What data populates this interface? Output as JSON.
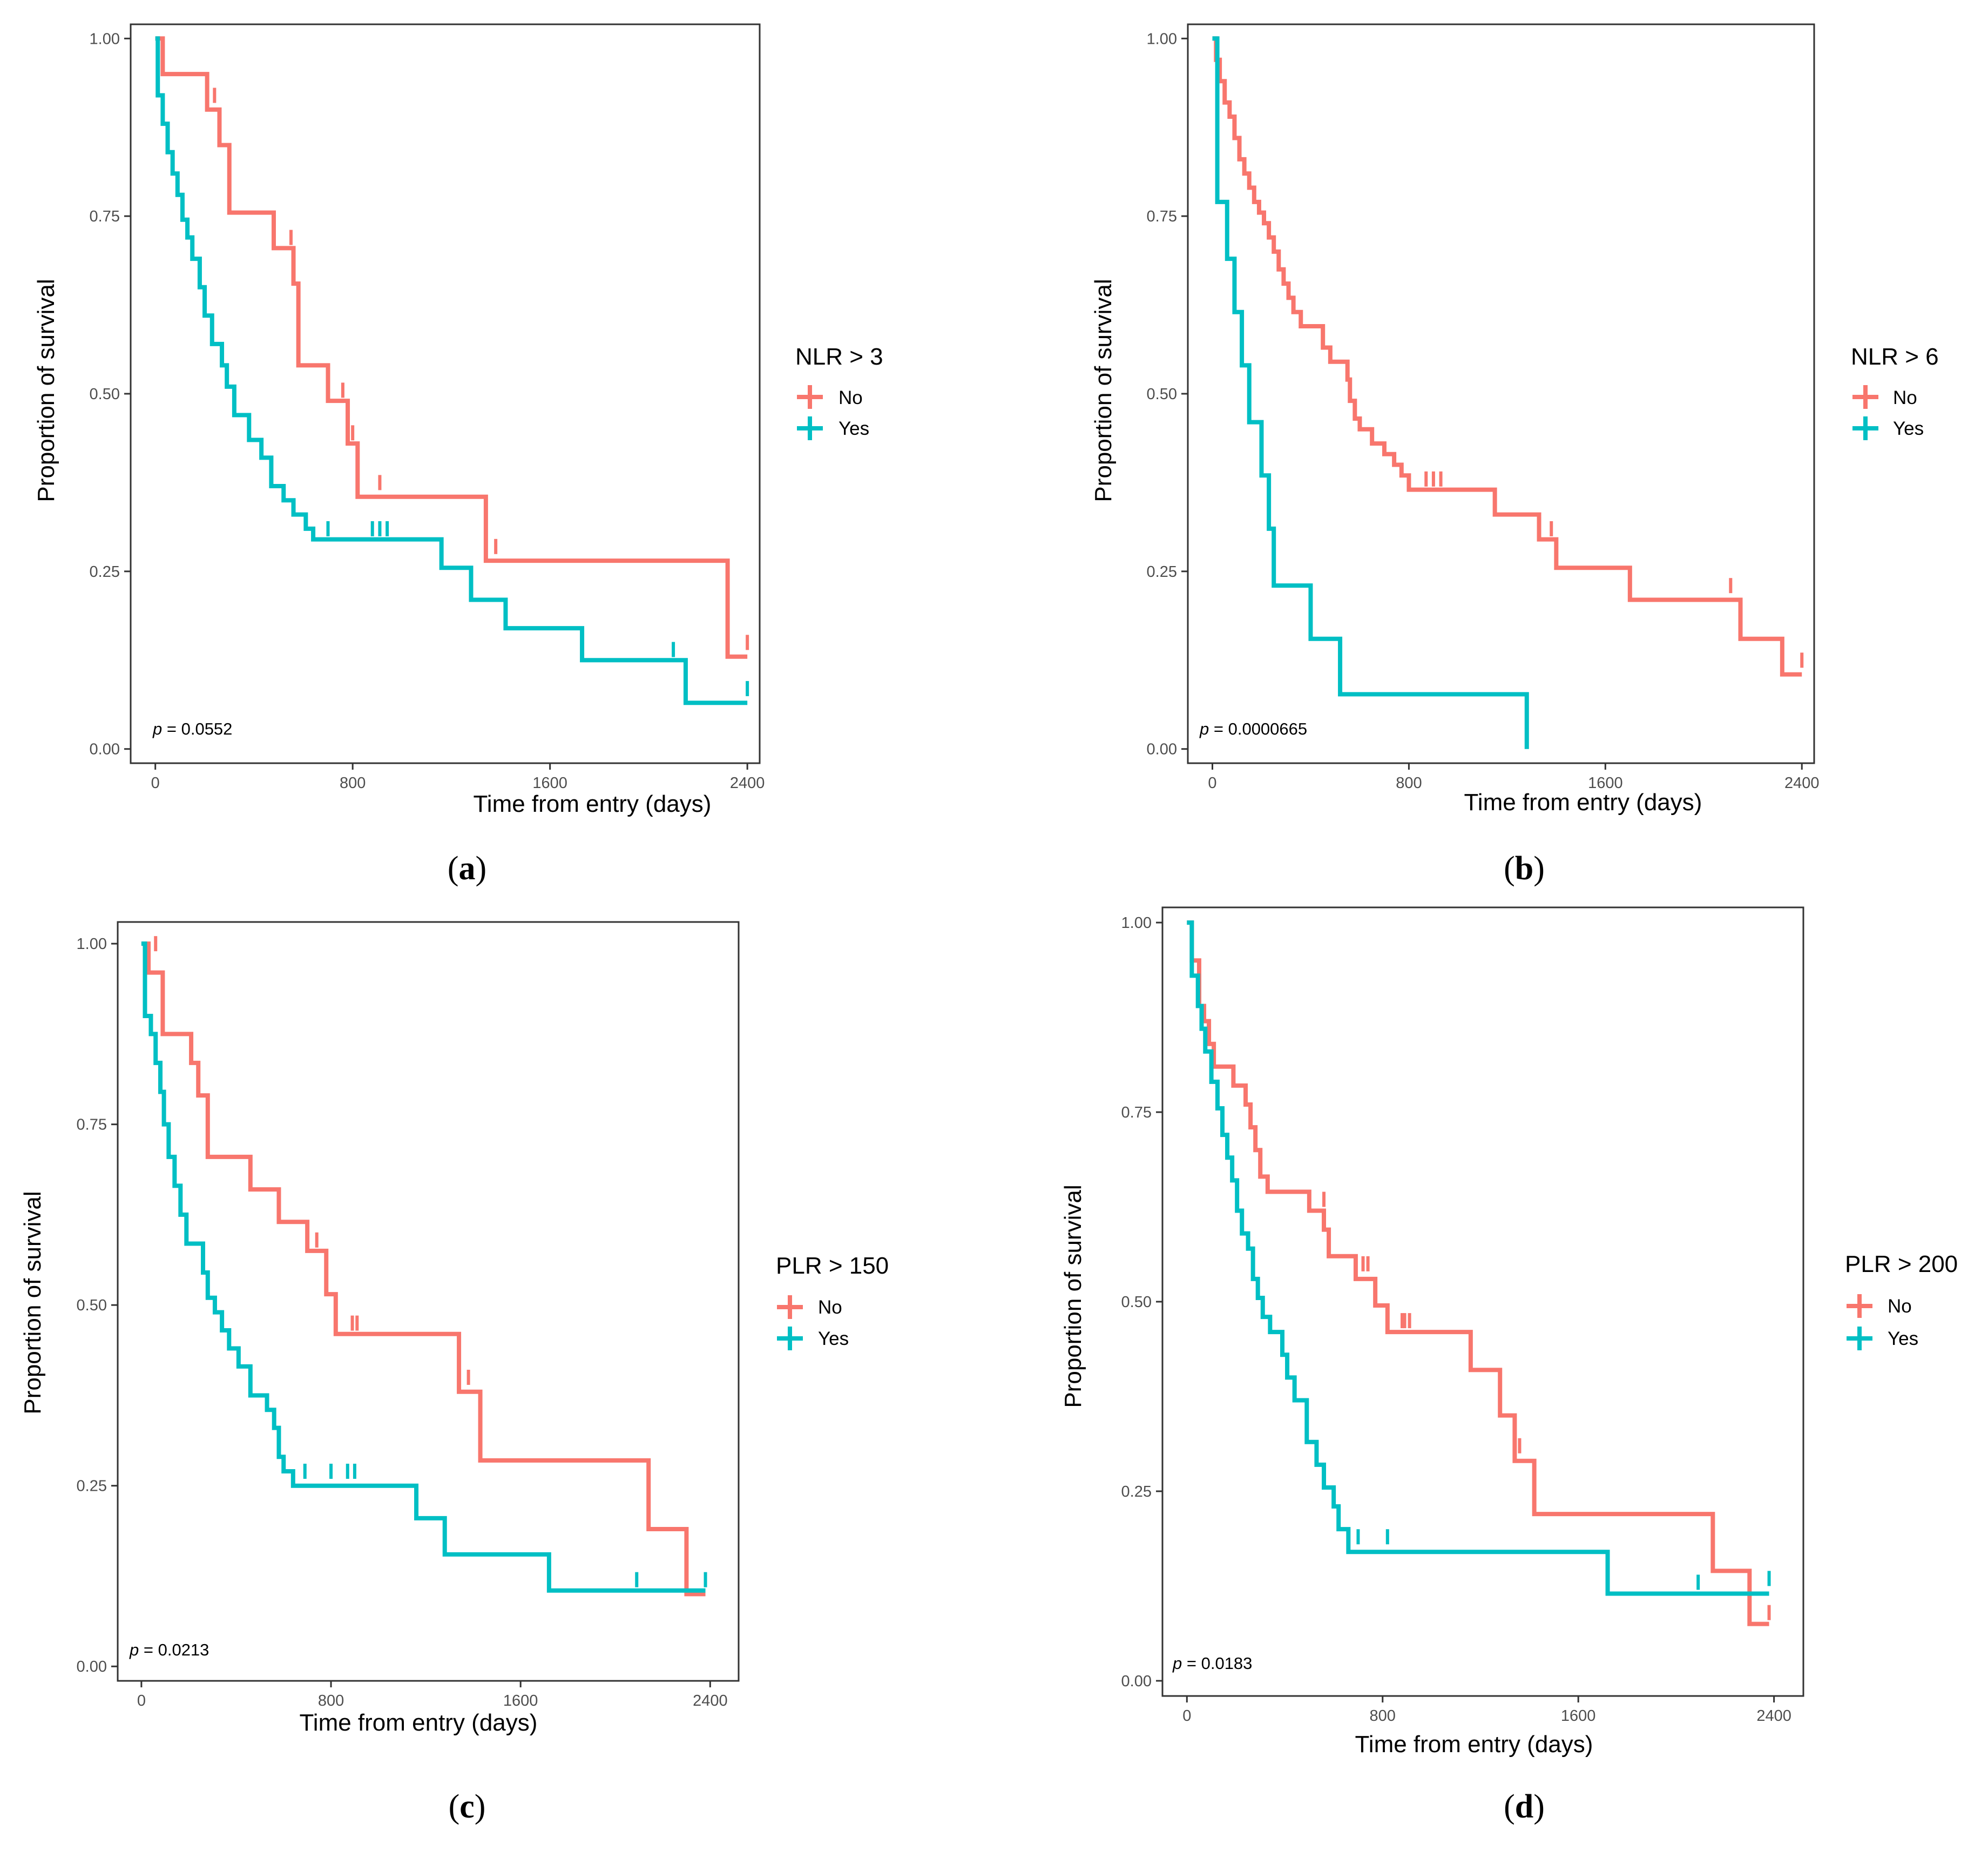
{
  "colors": {
    "no": "#F8766D",
    "yes": "#00BFC4",
    "axis": "#333333",
    "tick_text": "#4d4d4d"
  },
  "common": {
    "xlabel": "Time from entry (days)",
    "ylabel": "Proportion of survival",
    "x_ticks": [
      0,
      800,
      1600,
      2400
    ],
    "y_ticks": [
      0.0,
      0.25,
      0.5,
      0.75,
      1.0
    ],
    "y_tick_labels": [
      "0.00",
      "0.25",
      "0.50",
      "0.75",
      "1.00"
    ]
  },
  "chart_data": [
    {
      "id": "a",
      "panel_label": "a",
      "type": "line",
      "subtype": "kaplan-meier",
      "title": "",
      "xlabel": "Time from entry (days)",
      "ylabel": "Proportion of survival",
      "xlim": [
        -100,
        2450
      ],
      "ylim": [
        -0.02,
        1.02
      ],
      "legend": {
        "title": "NLR > 3",
        "entries": [
          "No",
          "Yes"
        ]
      },
      "p_value": "0.0552",
      "series": [
        {
          "name": "No",
          "steps": [
            [
              0,
              1.0
            ],
            [
              30,
              0.95
            ],
            [
              210,
              0.9
            ],
            [
              260,
              0.85
            ],
            [
              300,
              0.755
            ],
            [
              480,
              0.705
            ],
            [
              560,
              0.655
            ],
            [
              580,
              0.54
            ],
            [
              700,
              0.49
            ],
            [
              780,
              0.43
            ],
            [
              820,
              0.355
            ],
            [
              1340,
              0.265
            ],
            [
              2320,
              0.13
            ],
            [
              2400,
              0.13
            ]
          ],
          "censor": [
            [
              240,
              0.92
            ],
            [
              550,
              0.72
            ],
            [
              760,
              0.505
            ],
            [
              800,
              0.445
            ],
            [
              910,
              0.375
            ],
            [
              1380,
              0.285
            ],
            [
              2400,
              0.15
            ]
          ]
        },
        {
          "name": "Yes",
          "steps": [
            [
              0,
              1.0
            ],
            [
              10,
              0.92
            ],
            [
              30,
              0.88
            ],
            [
              50,
              0.84
            ],
            [
              70,
              0.81
            ],
            [
              90,
              0.78
            ],
            [
              110,
              0.745
            ],
            [
              130,
              0.72
            ],
            [
              150,
              0.69
            ],
            [
              180,
              0.65
            ],
            [
              200,
              0.61
            ],
            [
              230,
              0.57
            ],
            [
              270,
              0.54
            ],
            [
              290,
              0.51
            ],
            [
              320,
              0.47
            ],
            [
              380,
              0.435
            ],
            [
              430,
              0.41
            ],
            [
              470,
              0.37
            ],
            [
              520,
              0.35
            ],
            [
              560,
              0.33
            ],
            [
              610,
              0.31
            ],
            [
              640,
              0.295
            ],
            [
              1160,
              0.255
            ],
            [
              1280,
              0.21
            ],
            [
              1420,
              0.17
            ],
            [
              1730,
              0.125
            ],
            [
              2150,
              0.065
            ],
            [
              2400,
              0.065
            ]
          ],
          "censor": [
            [
              700,
              0.31
            ],
            [
              880,
              0.31
            ],
            [
              910,
              0.31
            ],
            [
              940,
              0.31
            ],
            [
              2100,
              0.14
            ],
            [
              2400,
              0.085
            ]
          ]
        }
      ]
    },
    {
      "id": "b",
      "panel_label": "b",
      "type": "line",
      "subtype": "kaplan-meier",
      "title": "",
      "xlabel": "Time from entry (days)",
      "ylabel": "Proportion of survival",
      "xlim": [
        -100,
        2450
      ],
      "ylim": [
        -0.02,
        1.02
      ],
      "legend": {
        "title": "NLR > 6",
        "entries": [
          "No",
          "Yes"
        ]
      },
      "p_value": "0.0000665",
      "series": [
        {
          "name": "No",
          "steps": [
            [
              0,
              1.0
            ],
            [
              15,
              0.97
            ],
            [
              30,
              0.94
            ],
            [
              50,
              0.91
            ],
            [
              70,
              0.89
            ],
            [
              90,
              0.86
            ],
            [
              110,
              0.83
            ],
            [
              130,
              0.81
            ],
            [
              150,
              0.79
            ],
            [
              170,
              0.77
            ],
            [
              190,
              0.755
            ],
            [
              210,
              0.74
            ],
            [
              230,
              0.72
            ],
            [
              250,
              0.7
            ],
            [
              270,
              0.675
            ],
            [
              290,
              0.655
            ],
            [
              310,
              0.635
            ],
            [
              330,
              0.615
            ],
            [
              360,
              0.595
            ],
            [
              450,
              0.565
            ],
            [
              480,
              0.545
            ],
            [
              550,
              0.52
            ],
            [
              560,
              0.49
            ],
            [
              580,
              0.465
            ],
            [
              600,
              0.45
            ],
            [
              650,
              0.43
            ],
            [
              700,
              0.415
            ],
            [
              740,
              0.4
            ],
            [
              770,
              0.385
            ],
            [
              800,
              0.365
            ],
            [
              1150,
              0.33
            ],
            [
              1330,
              0.295
            ],
            [
              1400,
              0.255
            ],
            [
              1700,
              0.21
            ],
            [
              2150,
              0.155
            ],
            [
              2320,
              0.105
            ],
            [
              2400,
              0.105
            ]
          ],
          "censor": [
            [
              870,
              0.38
            ],
            [
              900,
              0.38
            ],
            [
              930,
              0.38
            ],
            [
              1380,
              0.31
            ],
            [
              2110,
              0.23
            ],
            [
              2400,
              0.125
            ]
          ]
        },
        {
          "name": "Yes",
          "steps": [
            [
              0,
              1.0
            ],
            [
              20,
              0.77
            ],
            [
              60,
              0.69
            ],
            [
              90,
              0.615
            ],
            [
              120,
              0.54
            ],
            [
              150,
              0.46
            ],
            [
              200,
              0.385
            ],
            [
              230,
              0.31
            ],
            [
              250,
              0.23
            ],
            [
              400,
              0.155
            ],
            [
              520,
              0.077
            ],
            [
              1280,
              0.0
            ]
          ],
          "censor": []
        }
      ]
    },
    {
      "id": "c",
      "panel_label": "c",
      "type": "line",
      "subtype": "kaplan-meier",
      "title": "",
      "xlabel": "Time from entry (days)",
      "ylabel": "Proportion of survival",
      "xlim": [
        -100,
        2520
      ],
      "ylim": [
        -0.02,
        1.03
      ],
      "legend": {
        "title": "PLR > 150",
        "entries": [
          "No",
          "Yes"
        ]
      },
      "p_value": "0.0213",
      "series": [
        {
          "name": "No",
          "steps": [
            [
              0,
              1.0
            ],
            [
              30,
              0.96
            ],
            [
              90,
              0.875
            ],
            [
              210,
              0.835
            ],
            [
              240,
              0.79
            ],
            [
              280,
              0.705
            ],
            [
              460,
              0.66
            ],
            [
              580,
              0.615
            ],
            [
              700,
              0.575
            ],
            [
              780,
              0.515
            ],
            [
              820,
              0.46
            ],
            [
              1340,
              0.38
            ],
            [
              1430,
              0.285
            ],
            [
              2140,
              0.19
            ],
            [
              2300,
              0.1
            ],
            [
              2380,
              0.1
            ]
          ],
          "censor": [
            [
              60,
              1.0
            ],
            [
              700,
              0.59
            ],
            [
              740,
              0.59
            ],
            [
              890,
              0.475
            ],
            [
              910,
              0.475
            ],
            [
              1380,
              0.4
            ]
          ]
        },
        {
          "name": "Yes",
          "steps": [
            [
              0,
              1.0
            ],
            [
              15,
              0.9
            ],
            [
              40,
              0.875
            ],
            [
              60,
              0.835
            ],
            [
              80,
              0.795
            ],
            [
              95,
              0.75
            ],
            [
              115,
              0.705
            ],
            [
              140,
              0.665
            ],
            [
              165,
              0.625
            ],
            [
              190,
              0.585
            ],
            [
              260,
              0.545
            ],
            [
              280,
              0.51
            ],
            [
              310,
              0.49
            ],
            [
              340,
              0.465
            ],
            [
              370,
              0.44
            ],
            [
              410,
              0.415
            ],
            [
              460,
              0.375
            ],
            [
              530,
              0.355
            ],
            [
              560,
              0.33
            ],
            [
              580,
              0.29
            ],
            [
              600,
              0.27
            ],
            [
              640,
              0.25
            ],
            [
              1160,
              0.205
            ],
            [
              1280,
              0.155
            ],
            [
              1720,
              0.105
            ],
            [
              2380,
              0.105
            ]
          ],
          "censor": [
            [
              690,
              0.27
            ],
            [
              800,
              0.27
            ],
            [
              870,
              0.27
            ],
            [
              900,
              0.27
            ],
            [
              2090,
              0.12
            ],
            [
              2380,
              0.12
            ]
          ]
        }
      ]
    },
    {
      "id": "d",
      "panel_label": "d",
      "type": "line",
      "subtype": "kaplan-meier",
      "title": "",
      "xlabel": "Time from entry (days)",
      "ylabel": "Proportion of survival",
      "xlim": [
        -100,
        2520
      ],
      "ylim": [
        -0.02,
        1.02
      ],
      "legend": {
        "title": "PLR > 200",
        "entries": [
          "No",
          "Yes"
        ]
      },
      "p_value": "0.0183",
      "series": [
        {
          "name": "No",
          "steps": [
            [
              0,
              1.0
            ],
            [
              20,
              0.95
            ],
            [
              50,
              0.89
            ],
            [
              70,
              0.87
            ],
            [
              90,
              0.84
            ],
            [
              110,
              0.81
            ],
            [
              190,
              0.785
            ],
            [
              240,
              0.76
            ],
            [
              260,
              0.73
            ],
            [
              280,
              0.7
            ],
            [
              300,
              0.665
            ],
            [
              330,
              0.645
            ],
            [
              500,
              0.62
            ],
            [
              560,
              0.595
            ],
            [
              580,
              0.56
            ],
            [
              690,
              0.53
            ],
            [
              770,
              0.495
            ],
            [
              820,
              0.46
            ],
            [
              1160,
              0.41
            ],
            [
              1280,
              0.35
            ],
            [
              1340,
              0.29
            ],
            [
              1420,
              0.22
            ],
            [
              2150,
              0.145
            ],
            [
              2300,
              0.075
            ],
            [
              2380,
              0.075
            ]
          ],
          "censor": [
            [
              560,
              0.635
            ],
            [
              720,
              0.55
            ],
            [
              740,
              0.55
            ],
            [
              880,
              0.475
            ],
            [
              890,
              0.475
            ],
            [
              910,
              0.475
            ],
            [
              1360,
              0.31
            ],
            [
              2380,
              0.09
            ]
          ]
        },
        {
          "name": "Yes",
          "steps": [
            [
              0,
              1.0
            ],
            [
              20,
              0.93
            ],
            [
              45,
              0.89
            ],
            [
              60,
              0.86
            ],
            [
              75,
              0.83
            ],
            [
              100,
              0.79
            ],
            [
              125,
              0.755
            ],
            [
              145,
              0.72
            ],
            [
              165,
              0.69
            ],
            [
              185,
              0.66
            ],
            [
              205,
              0.62
            ],
            [
              225,
              0.59
            ],
            [
              250,
              0.57
            ],
            [
              270,
              0.53
            ],
            [
              290,
              0.505
            ],
            [
              310,
              0.48
            ],
            [
              340,
              0.46
            ],
            [
              390,
              0.43
            ],
            [
              410,
              0.4
            ],
            [
              440,
              0.37
            ],
            [
              490,
              0.315
            ],
            [
              530,
              0.285
            ],
            [
              560,
              0.255
            ],
            [
              600,
              0.23
            ],
            [
              620,
              0.2
            ],
            [
              660,
              0.17
            ],
            [
              1720,
              0.115
            ],
            [
              2380,
              0.115
            ]
          ],
          "censor": [
            [
              700,
              0.19
            ],
            [
              820,
              0.19
            ],
            [
              2090,
              0.13
            ],
            [
              2380,
              0.135
            ]
          ]
        }
      ]
    }
  ]
}
